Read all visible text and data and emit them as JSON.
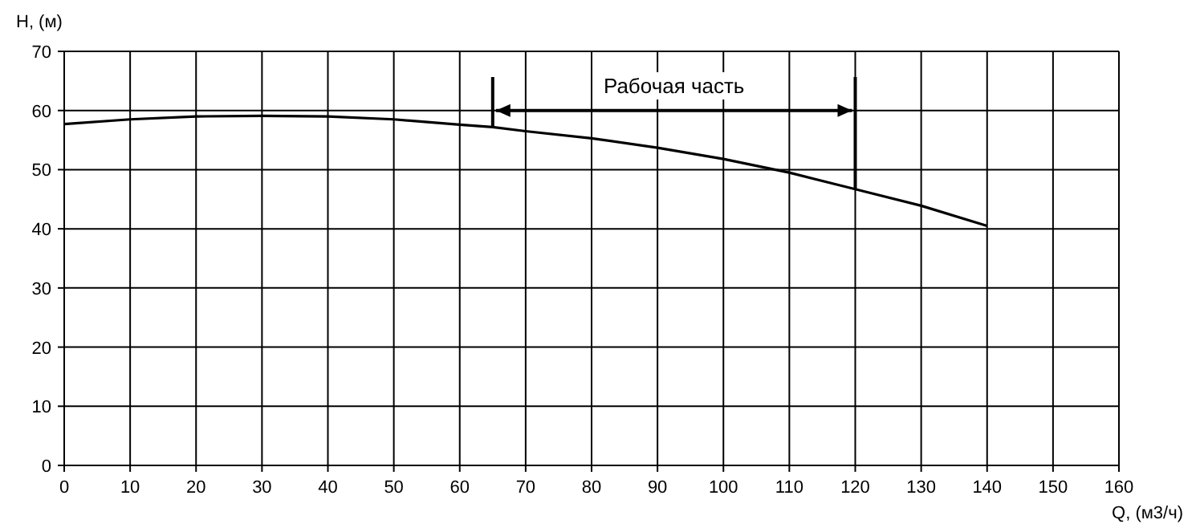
{
  "chart_data": {
    "type": "line",
    "xlabel": "Q, (м3/ч)",
    "ylabel": "H, (м)",
    "x": [
      0,
      10,
      20,
      30,
      40,
      50,
      60,
      65,
      70,
      80,
      90,
      100,
      110,
      120,
      130,
      140
    ],
    "series": [
      {
        "color": "#000000",
        "values": [
          57.7,
          58.5,
          59,
          59.1,
          59,
          58.5,
          57.6,
          57.2,
          56.5,
          55.3,
          53.7,
          51.8,
          49.5,
          46.7,
          43.9,
          40.5
        ]
      }
    ],
    "xlim": [
      0,
      160
    ],
    "xticks": [
      0,
      10,
      20,
      30,
      40,
      50,
      60,
      70,
      80,
      90,
      100,
      110,
      120,
      130,
      140,
      150,
      160
    ],
    "ylim": [
      0,
      70
    ],
    "yticks": [
      0,
      10,
      20,
      30,
      40,
      50,
      60,
      70
    ],
    "ref_lines": [
      {
        "axis": "x",
        "value": 65
      },
      {
        "axis": "x",
        "value": 120
      }
    ],
    "annotations": [
      "Рабочая часть"
    ],
    "grid": true,
    "marker": "none",
    "line_style": "solid"
  }
}
